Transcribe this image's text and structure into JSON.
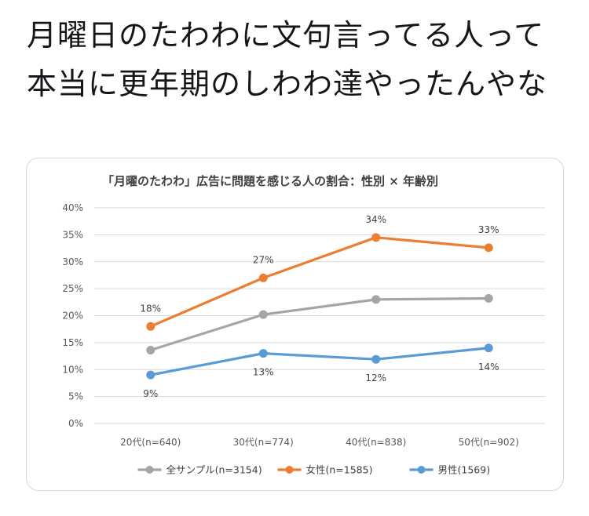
{
  "tweet": {
    "text": "月曜日のたわわに文句言ってる人って本当に更年期のしわわ達やったんやな"
  },
  "chart_data": {
    "type": "line",
    "title": "「月曜のたわわ」広告に問題を感じる人の割合：性別 × 年齢別",
    "categories": [
      "20代(n=640)",
      "30代(n=774)",
      "40代(n=838)",
      "50代(n=902)"
    ],
    "ylim": [
      0,
      40
    ],
    "yticks": [
      0,
      5,
      10,
      15,
      20,
      25,
      30,
      35,
      40
    ],
    "ytick_labels": [
      "0%",
      "5%",
      "10%",
      "15%",
      "20%",
      "25%",
      "30%",
      "35%",
      "40%"
    ],
    "grid": true,
    "legend_position": "bottom",
    "series": [
      {
        "name": "全サンプル(n=3154)",
        "color": "#a5a5a5",
        "values": [
          13.6,
          20.2,
          23.0,
          23.2
        ],
        "labels": [
          "",
          "",
          "",
          ""
        ]
      },
      {
        "name": "女性(n=1585)",
        "color": "#ed7d31",
        "values": [
          18,
          27,
          34.5,
          32.6
        ],
        "labels": [
          "18%",
          "27%",
          "34%",
          "33%"
        ],
        "label_side": "above"
      },
      {
        "name": "男性(1569)",
        "color": "#5b9bd5",
        "values": [
          9,
          13,
          11.9,
          14
        ],
        "labels": [
          "9%",
          "13%",
          "12%",
          "14%"
        ],
        "label_side": "below"
      }
    ]
  }
}
